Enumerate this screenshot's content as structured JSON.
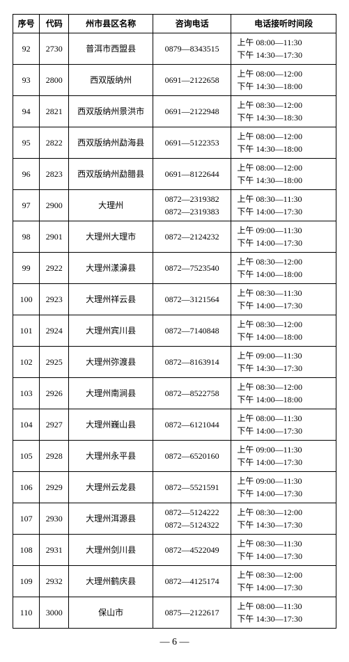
{
  "header": {
    "seq": "序号",
    "code": "代码",
    "name": "州市县区名称",
    "phone": "咨询电话",
    "time": "电话接听时间段"
  },
  "rows": [
    {
      "seq": "92",
      "code": "2730",
      "name": "普洱市西盟县",
      "phone": "0879—8343515",
      "am": "上午 08:00—11:30",
      "pm": "下午 14:30—17:30"
    },
    {
      "seq": "93",
      "code": "2800",
      "name": "西双版纳州",
      "phone": "0691—2122658",
      "am": "上午 08:00—12:00",
      "pm": "下午 14:30—18:00"
    },
    {
      "seq": "94",
      "code": "2821",
      "name": "西双版纳州景洪市",
      "phone": "0691—2122948",
      "am": "上午 08:30—12:00",
      "pm": "下午 14:30—18:30"
    },
    {
      "seq": "95",
      "code": "2822",
      "name": "西双版纳州勐海县",
      "phone": "0691—5122353",
      "am": "上午 08:00—12:00",
      "pm": "下午 14:30—18:00"
    },
    {
      "seq": "96",
      "code": "2823",
      "name": "西双版纳州勐腊县",
      "phone": "0691—8122644",
      "am": "上午 08:00—12:00",
      "pm": "下午 14:30—18:00"
    },
    {
      "seq": "97",
      "code": "2900",
      "name": "大理州",
      "phone": "0872—2319382\n0872—2319383",
      "am": "上午 08:30—11:30",
      "pm": "下午 14:00—17:30"
    },
    {
      "seq": "98",
      "code": "2901",
      "name": "大理州大理市",
      "phone": "0872—2124232",
      "am": "上午 09:00—11:30",
      "pm": "下午 14:00—17:30"
    },
    {
      "seq": "99",
      "code": "2922",
      "name": "大理州漾濞县",
      "phone": "0872—7523540",
      "am": "上午 08:30—12:00",
      "pm": "下午 14:00—18:00"
    },
    {
      "seq": "100",
      "code": "2923",
      "name": "大理州祥云县",
      "phone": "0872—3121564",
      "am": "上午 08:30—11:30",
      "pm": "下午 14:00—17:30"
    },
    {
      "seq": "101",
      "code": "2924",
      "name": "大理州宾川县",
      "phone": "0872—7140848",
      "am": "上午 08:30—12:00",
      "pm": "下午 14:00—18:00"
    },
    {
      "seq": "102",
      "code": "2925",
      "name": "大理州弥渡县",
      "phone": "0872—8163914",
      "am": "上午 09:00—11:30",
      "pm": "下午 14:30—17:30"
    },
    {
      "seq": "103",
      "code": "2926",
      "name": "大理州南涧县",
      "phone": "0872—8522758",
      "am": "上午 08:30—12:00",
      "pm": "下午 14:00—18:00"
    },
    {
      "seq": "104",
      "code": "2927",
      "name": "大理州巍山县",
      "phone": "0872—6121044",
      "am": "上午 08:00—11:30",
      "pm": "下午 14:00—17:30"
    },
    {
      "seq": "105",
      "code": "2928",
      "name": "大理州永平县",
      "phone": "0872—6520160",
      "am": "上午 09:00—11:30",
      "pm": "下午 14:00—17:30"
    },
    {
      "seq": "106",
      "code": "2929",
      "name": "大理州云龙县",
      "phone": "0872—5521591",
      "am": "上午 09:00—11:30",
      "pm": "下午 14:00—17:30"
    },
    {
      "seq": "107",
      "code": "2930",
      "name": "大理州洱源县",
      "phone": "0872—5124222\n0872—5124322",
      "am": "上午 08:30—12:00",
      "pm": "下午 14:30—17:30"
    },
    {
      "seq": "108",
      "code": "2931",
      "name": "大理州剑川县",
      "phone": "0872—4522049",
      "am": "上午 08:30—11:30",
      "pm": "下午 14:00—17:30"
    },
    {
      "seq": "109",
      "code": "2932",
      "name": "大理州鹤庆县",
      "phone": "0872—4125174",
      "am": "上午 08:30—12:00",
      "pm": "下午 14:00—17:30"
    },
    {
      "seq": "110",
      "code": "3000",
      "name": "保山市",
      "phone": "0875—2122617",
      "am": "上午 08:00—11:30",
      "pm": "下午 14:30—17:30"
    }
  ],
  "pager": "— 6 —"
}
